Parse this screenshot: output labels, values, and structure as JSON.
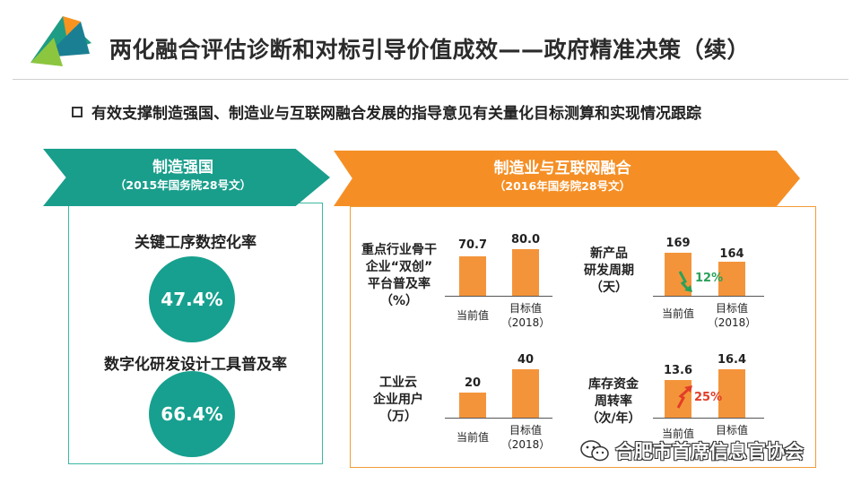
{
  "title": "两化融合评估诊断和对标引导价值成效——政府精准决策（续）",
  "bullet": "有效支撑制造强国、制造业与互联网融合发展的指导意见有关量化目标测算和实现情况跟踪",
  "left": {
    "banner_main": "制造强国",
    "banner_sub": "（2015年国务院28号文）",
    "metrics": [
      {
        "label": "关键工序数控化率",
        "value": "47.4%"
      },
      {
        "label": "数字化研发设计工具普及率",
        "value": "66.4%"
      }
    ]
  },
  "right": {
    "banner_main": "制造业与互联网融合",
    "banner_sub": "（2016年国务院28号文）",
    "charts": [
      {
        "label_lines": [
          "重点行业骨干",
          "企业“双创”",
          "平台普及率",
          "（%）"
        ],
        "categories": [
          "当前值",
          "目标值\n（2018）"
        ],
        "values": [
          70.7,
          80.0
        ],
        "value_labels": [
          "70.7",
          "80.0"
        ]
      },
      {
        "label_lines": [
          "新产品",
          "研发周期",
          "（天）"
        ],
        "categories": [
          "当前值",
          "目标值\n（2018）"
        ],
        "values": [
          169,
          164
        ],
        "value_labels": [
          "169",
          "164"
        ],
        "change": "12%",
        "change_color": "#2aa15a"
      },
      {
        "label_lines": [
          "工业云",
          "企业用户",
          "（万）"
        ],
        "categories": [
          "当前值",
          "目标值\n（2018）"
        ],
        "values": [
          20,
          40
        ],
        "value_labels": [
          "20",
          "40"
        ]
      },
      {
        "label_lines": [
          "库存资金",
          "周转率",
          "（次/年）"
        ],
        "categories": [
          "当前值",
          "目标值"
        ],
        "values": [
          13.6,
          16.4
        ],
        "value_labels": [
          "13.6",
          "16.4"
        ],
        "change": "25%",
        "change_color": "#e23d28"
      }
    ]
  },
  "watermark": "合肥市首席信息官协会",
  "colors": {
    "teal": "#1a9e8c",
    "orange": "#f58f25",
    "bar": "#f4943a"
  }
}
